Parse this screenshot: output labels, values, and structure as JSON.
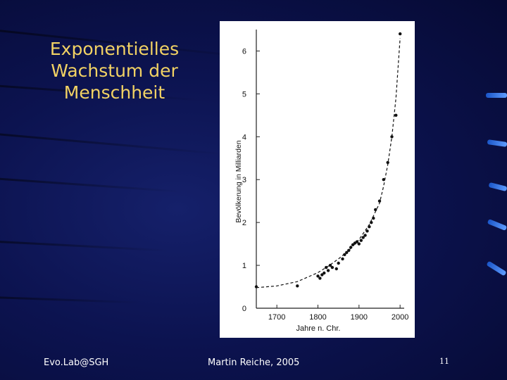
{
  "slide": {
    "title": "Exponentielles\nWachstum der\nMenschheit",
    "footer_left": "Evo.Lab@SGH",
    "footer_center": "Martin Reiche, 2005",
    "page_number": "11"
  },
  "chart_data": {
    "type": "scatter",
    "title": "",
    "xlabel": "Jahre n. Chr.",
    "ylabel": "Bevölkerung in Milliarden",
    "xlim": [
      1650,
      2010
    ],
    "ylim": [
      0,
      6.5
    ],
    "x_ticks": [
      1700,
      1800,
      1900,
      2000
    ],
    "x_tick_labels": [
      "1700",
      "1800",
      "1900",
      "2000"
    ],
    "y_ticks": [
      0,
      1,
      2,
      3,
      4,
      5,
      6
    ],
    "y_tick_labels": [
      "0",
      "1",
      "2",
      "3",
      "4",
      "5",
      "6"
    ],
    "grid": false,
    "series": [
      {
        "style": "points",
        "x": [
          1650,
          1750,
          1800,
          1805,
          1810,
          1815,
          1820,
          1825,
          1830,
          1835,
          1845,
          1850,
          1860,
          1865,
          1870,
          1875,
          1880,
          1885,
          1890,
          1895,
          1900,
          1905,
          1910,
          1915,
          1920,
          1925,
          1930,
          1935,
          1940,
          1950,
          1960,
          1970,
          1980,
          1990,
          2000
        ],
        "y": [
          0.5,
          0.52,
          0.75,
          0.7,
          0.78,
          0.82,
          0.95,
          0.88,
          1.0,
          0.95,
          0.92,
          1.05,
          1.15,
          1.25,
          1.3,
          1.35,
          1.42,
          1.48,
          1.52,
          1.55,
          1.5,
          1.58,
          1.65,
          1.7,
          1.8,
          1.9,
          2.0,
          2.1,
          2.3,
          2.5,
          3.0,
          3.4,
          4.0,
          4.5,
          6.4
        ]
      },
      {
        "style": "dashed-fit",
        "x": [
          1650,
          1700,
          1750,
          1800,
          1825,
          1850,
          1875,
          1900,
          1925,
          1950,
          1960,
          1970,
          1980,
          1990,
          2000
        ],
        "y": [
          0.48,
          0.52,
          0.62,
          0.83,
          0.98,
          1.15,
          1.35,
          1.6,
          1.95,
          2.45,
          2.85,
          3.35,
          4.0,
          4.9,
          6.3
        ]
      }
    ]
  }
}
